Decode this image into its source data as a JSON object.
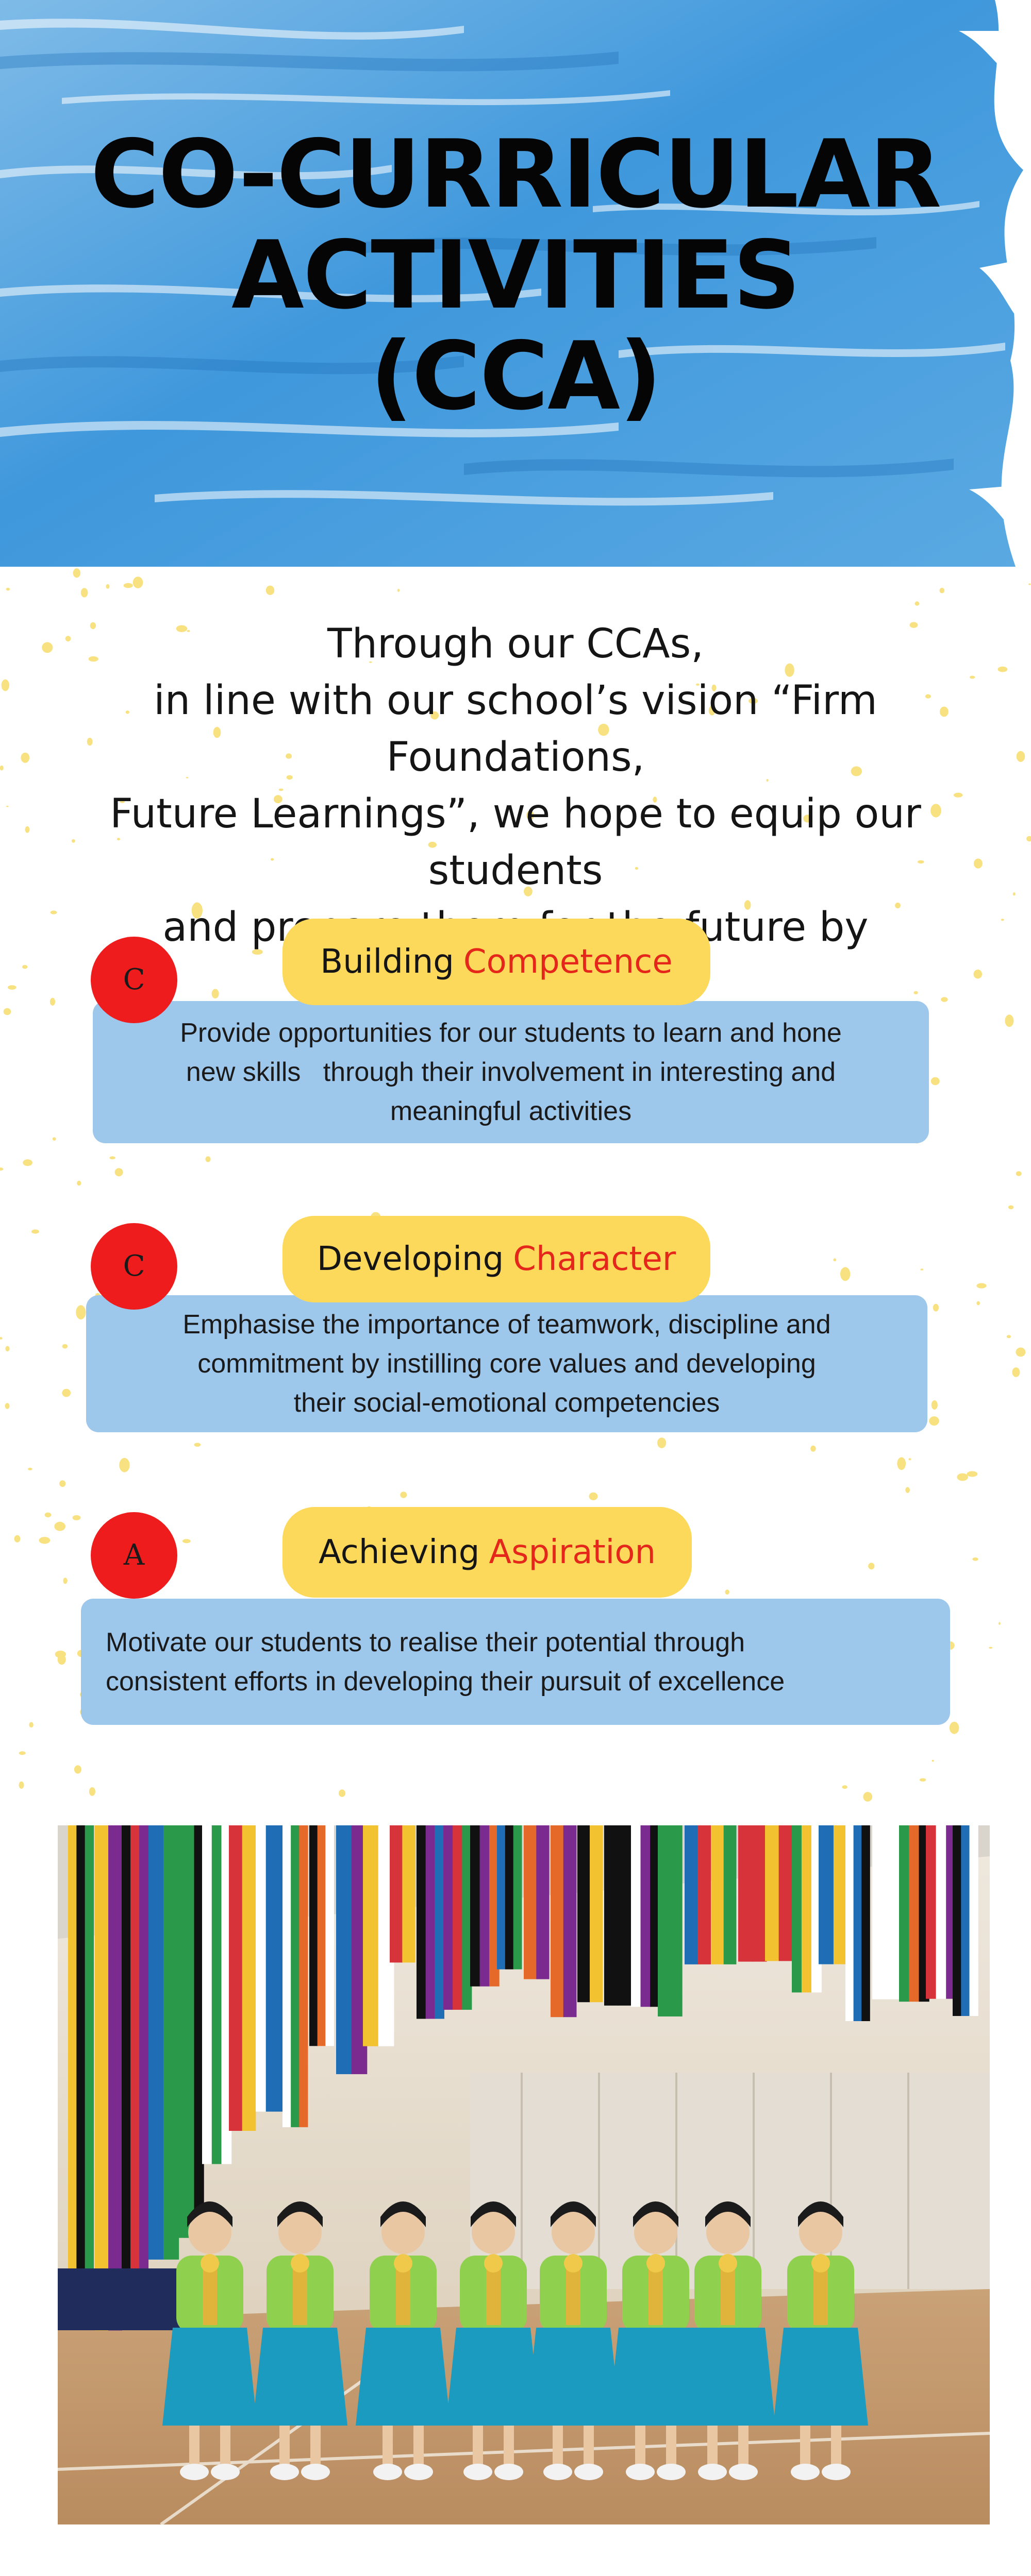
{
  "hero": {
    "title_lines": [
      "CO-CURRICULAR",
      "ACTIVITIES",
      "(CCA)"
    ],
    "paint_color": "#3a93d8"
  },
  "intro": {
    "lines": [
      "Through our CCAs,",
      "in line with our school’s vision “Firm Foundations,",
      "Future Learnings”, we hope to equip our students",
      "and prepare them for the future by"
    ]
  },
  "pillars": [
    {
      "letter": "C",
      "heading": "Building",
      "highlight": "Competence",
      "description_lines": [
        "Provide opportunities for our students to learn and hone",
        "new skills   through their involvement in interesting and",
        "meaningful activities"
      ]
    },
    {
      "letter": "C",
      "heading": "Developing",
      "highlight": "Character",
      "description_lines": [
        "Emphasise the importance of teamwork, discipline and",
        "commitment by instilling core values and developing",
        "their social-emotional competencies"
      ]
    },
    {
      "letter": "A",
      "heading": "Achieving",
      "highlight": "Aspiration",
      "description_lines": [
        "Motivate our students to realise their potential through",
        "consistent efforts in developing their pursuit of excellence"
      ]
    }
  ],
  "colors": {
    "badge": "#ee1c1c",
    "pill": "#fcd95a",
    "highlight": "#e4261b",
    "card": "#9ec7ec",
    "splatter": "#f7dc6a"
  },
  "icons": {
    "photo": "group-photo"
  }
}
